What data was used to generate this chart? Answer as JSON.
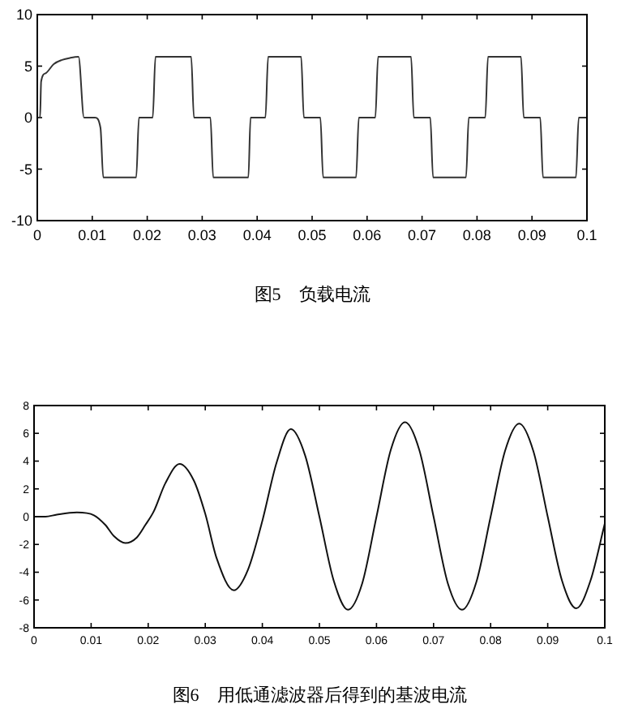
{
  "chart_data": [
    {
      "type": "line",
      "title": "图5　负载电流",
      "xlim": [
        0,
        0.1
      ],
      "ylim": [
        -10,
        10
      ],
      "xticks": [
        0,
        0.01,
        0.02,
        0.03,
        0.04,
        0.05,
        0.06,
        0.07,
        0.08,
        0.09,
        0.1
      ],
      "yticks": [
        -10,
        -5,
        0,
        5,
        10
      ],
      "grid": false,
      "series": [
        {
          "color": "#333333",
          "x": [
            0,
            0.0005,
            0.0007,
            0.0015,
            0.003,
            0.0045,
            0.006,
            0.0075,
            0.0085,
            0.0105,
            0.0115,
            0.012,
            0.018,
            0.0185,
            0.021,
            0.0215,
            0.0218,
            0.028,
            0.0285,
            0.0315,
            0.032,
            0.0384,
            0.0388,
            0.0415,
            0.042,
            0.048,
            0.0485,
            0.0515,
            0.052,
            0.058,
            0.0585,
            0.0615,
            0.062,
            0.068,
            0.0685,
            0.0715,
            0.072,
            0.078,
            0.0785,
            0.0815,
            0.082,
            0.088,
            0.0885,
            0.0915,
            0.092,
            0.098,
            0.0985,
            0.1
          ],
          "values": [
            0,
            0,
            3.5,
            4.3,
            5.2,
            5.6,
            5.8,
            5.9,
            0,
            0,
            -1,
            -5.8,
            -5.8,
            0,
            0,
            5.9,
            5.9,
            5.9,
            0,
            0,
            -5.8,
            -5.8,
            0,
            0,
            5.9,
            5.9,
            0,
            0,
            -5.8,
            -5.8,
            0,
            0,
            5.9,
            5.9,
            0,
            0,
            -5.8,
            -5.8,
            0,
            0,
            5.9,
            5.9,
            0,
            0,
            -5.8,
            -5.8,
            0,
            0
          ]
        }
      ]
    },
    {
      "type": "line",
      "title": "图6　用低通滤波器后得到的基波电流",
      "xlim": [
        0,
        0.1
      ],
      "ylim": [
        -8,
        8
      ],
      "xticks": [
        0,
        0.01,
        0.02,
        0.03,
        0.04,
        0.05,
        0.06,
        0.07,
        0.08,
        0.09,
        0.1
      ],
      "yticks": [
        -8,
        -6,
        -4,
        -2,
        0,
        2,
        4,
        6,
        8
      ],
      "grid": false,
      "series": [
        {
          "color": "#111111",
          "x": [
            0,
            0.002,
            0.004,
            0.0075,
            0.0105,
            0.0125,
            0.014,
            0.016,
            0.018,
            0.0195,
            0.021,
            0.023,
            0.0255,
            0.028,
            0.03,
            0.032,
            0.035,
            0.0375,
            0.04,
            0.0425,
            0.045,
            0.0475,
            0.05,
            0.0525,
            0.055,
            0.0575,
            0.06,
            0.0625,
            0.065,
            0.0675,
            0.07,
            0.0725,
            0.075,
            0.0775,
            0.08,
            0.0825,
            0.085,
            0.0875,
            0.09,
            0.0925,
            0.095,
            0.0975,
            0.1
          ],
          "values": [
            0,
            0,
            0.15,
            0.3,
            0.1,
            -0.6,
            -1.4,
            -1.9,
            -1.5,
            -0.6,
            0.4,
            2.4,
            3.8,
            2.6,
            0.2,
            -3,
            -5.3,
            -3.8,
            -0.3,
            3.9,
            6.3,
            4.4,
            0,
            -4.6,
            -6.7,
            -4.8,
            0,
            4.8,
            6.8,
            4.8,
            0,
            -4.8,
            -6.7,
            -4.7,
            0,
            4.7,
            6.7,
            4.7,
            0,
            -4.6,
            -6.6,
            -4.6,
            -0.5
          ]
        }
      ]
    }
  ]
}
